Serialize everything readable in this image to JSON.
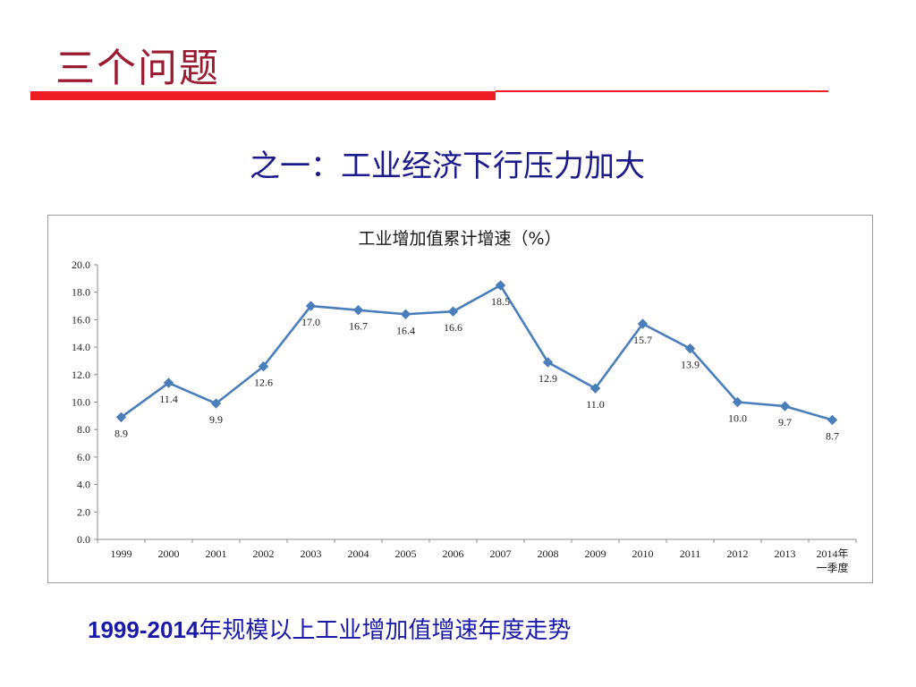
{
  "slide": {
    "title": "三个问题",
    "subtitle": "之一：工业经济下行压力加大",
    "caption_years": "1999-2014",
    "caption_text": "年规模以上工业增加值增速年度走势"
  },
  "colors": {
    "title": "#9b1b30",
    "rule": "#ee1c24",
    "subtitle": "#1b1b8c",
    "caption": "#1a1aa8",
    "series": "#4a7ebb"
  },
  "chart_data": {
    "type": "line",
    "title": "工业增加值累计增速（%）",
    "categories": [
      "1999",
      "2000",
      "2001",
      "2002",
      "2003",
      "2004",
      "2005",
      "2006",
      "2007",
      "2008",
      "2009",
      "2010",
      "2011",
      "2012",
      "2013",
      "2014年 一季度"
    ],
    "series": [
      {
        "values": [
          8.9,
          11.4,
          9.9,
          12.6,
          17.0,
          16.7,
          16.4,
          16.6,
          18.5,
          12.9,
          11.0,
          15.7,
          13.9,
          10.0,
          9.7,
          8.7
        ]
      }
    ],
    "data_labels": [
      "8.9",
      "11.4",
      "9.9",
      "12.6",
      "17.0",
      "16.7",
      "16.4",
      "16.6",
      "18.5",
      "12.9",
      "11.0",
      "15.7",
      "13.9",
      "10.0",
      "9.7",
      "8.7"
    ],
    "y_ticks": [
      "0.0",
      "2.0",
      "4.0",
      "6.0",
      "8.0",
      "10.0",
      "12.0",
      "14.0",
      "16.0",
      "18.0",
      "20.0"
    ],
    "ylim": [
      0,
      20
    ],
    "grid": false,
    "legend": "none",
    "marker": "diamond"
  }
}
